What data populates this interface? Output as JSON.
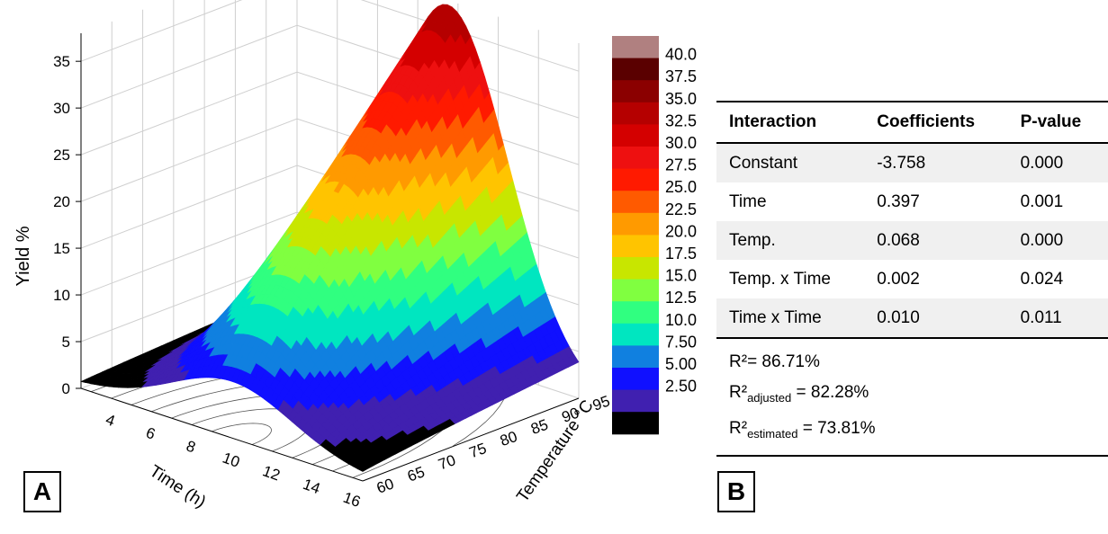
{
  "chart_data": {
    "type": "surface3d",
    "zlabel": "Yield %",
    "xlabel": "Time (h)",
    "ylabel": "Temperature °C",
    "x_ticks": [
      "4",
      "6",
      "8",
      "10",
      "12",
      "14",
      "16"
    ],
    "y_ticks": [
      "60",
      "65",
      "70",
      "75",
      "80",
      "85",
      "90",
      "95"
    ],
    "z_ticks": [
      "0",
      "5",
      "10",
      "15",
      "20",
      "25",
      "30",
      "35"
    ],
    "xlim": [
      2,
      16
    ],
    "ylim": [
      60,
      95
    ],
    "zlim": [
      0,
      38
    ],
    "model": {
      "constant": -3.758,
      "time": 0.397,
      "temp": 0.068,
      "temp_x_time": 0.002,
      "time_x_time": 0.01
    },
    "colorbar": {
      "levels": [
        "40.0",
        "37.5",
        "35.0",
        "32.5",
        "30.0",
        "27.5",
        "25.0",
        "22.5",
        "20.0",
        "17.5",
        "15.0",
        "12.5",
        "10.0",
        "7.50",
        "5.00",
        "2.50"
      ],
      "colors": [
        "#b08080",
        "#5a0000",
        "#8b0000",
        "#b50000",
        "#d40000",
        "#ee1010",
        "#ff1a00",
        "#ff5a00",
        "#ff9a00",
        "#ffc400",
        "#c8e600",
        "#80ff40",
        "#30ff80",
        "#00e6c0",
        "#1080e0",
        "#1010ff",
        "#4020b0",
        "#000000"
      ]
    }
  },
  "labels": {
    "panel_a": "A",
    "panel_b": "B"
  },
  "table": {
    "headers": [
      "Interaction",
      "Coefficients",
      "P-value"
    ],
    "rows": [
      [
        "Constant",
        "-3.758",
        "0.000"
      ],
      [
        "Time",
        "0.397",
        "0.001"
      ],
      [
        "Temp.",
        "0.068",
        "0.000"
      ],
      [
        "Temp. x Time",
        "0.002",
        "0.024"
      ],
      [
        "Time x Time",
        "0.010",
        "0.011"
      ]
    ]
  },
  "stats": {
    "r2_label": "R²",
    "r2_value": "= 86.71%",
    "r2adj_base": "R²",
    "r2adj_sub": "adjusted",
    "r2adj_value": " = 82.28%",
    "r2est_base": "R²",
    "r2est_sub": "estimated",
    "r2est_value": " = 73.81%"
  }
}
